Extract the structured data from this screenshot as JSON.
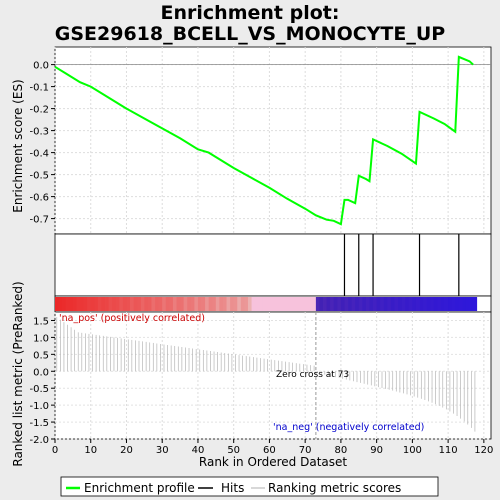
{
  "chart_data": {
    "type": "line",
    "title_line1": "Enrichment plot:",
    "title_line2": "GSE29618_BCELL_VS_MONOCYTE_UP",
    "es_panel": {
      "ylabel": "Enrichment score (ES)",
      "ylim": [
        -0.77,
        0.08
      ],
      "yticks": [
        0.0,
        -0.1,
        -0.2,
        -0.3,
        -0.4,
        -0.5,
        -0.6,
        -0.7
      ],
      "ytick_labels": [
        "0.0",
        "-0.1",
        "-0.2",
        "-0.3",
        "-0.4",
        "-0.5",
        "-0.6",
        "-0.7"
      ],
      "series": [
        {
          "color": "#00ff00",
          "x": [
            0,
            3,
            7,
            10,
            15,
            20,
            25,
            30,
            35,
            40,
            43,
            45,
            50,
            55,
            60,
            65,
            70,
            73,
            76,
            78,
            80,
            81,
            82,
            84,
            85,
            87,
            88,
            89,
            93,
            97,
            101,
            102,
            106,
            109,
            112,
            113,
            116,
            117
          ],
          "y": [
            -0.01,
            -0.04,
            -0.08,
            -0.1,
            -0.15,
            -0.2,
            -0.245,
            -0.29,
            -0.335,
            -0.385,
            -0.4,
            -0.42,
            -0.47,
            -0.515,
            -0.56,
            -0.61,
            -0.655,
            -0.685,
            -0.705,
            -0.71,
            -0.725,
            -0.615,
            -0.615,
            -0.63,
            -0.505,
            -0.52,
            -0.53,
            -0.34,
            -0.37,
            -0.405,
            -0.45,
            -0.215,
            -0.245,
            -0.27,
            -0.305,
            0.035,
            0.015,
            0.0
          ]
        }
      ]
    },
    "hits_panel": {
      "hit_ranks": [
        81,
        85,
        89,
        102,
        113
      ]
    },
    "color_bar": {
      "zero_cross_rank": 73,
      "pos_label": "'na_pos' (positively correlated)",
      "neg_label": "'na_neg' (negatively correlated)"
    },
    "metric_panel": {
      "ylabel": "Ranked list metric (PreRanked)",
      "ylim": [
        -2.0,
        1.75
      ],
      "yticks": [
        1.5,
        1.0,
        0.5,
        0.0,
        -0.5,
        -1.0,
        -1.5,
        -2.0
      ],
      "ytick_labels": [
        "1.5",
        "1.0",
        "0.5",
        "0.0",
        "-0.5",
        "-1.0",
        "-1.5",
        "-2.0"
      ],
      "zero_cross_label": "Zero cross at 73",
      "metric_start": 1.6,
      "metric_mid": 0.55,
      "metric_tail": -1.9
    },
    "x_axis": {
      "xlabel": "Rank in Ordered Dataset",
      "xlim": [
        0,
        122
      ],
      "xticks": [
        0,
        10,
        20,
        30,
        40,
        50,
        60,
        70,
        80,
        90,
        100,
        110,
        120
      ],
      "xtick_labels": [
        "0",
        "10",
        "20",
        "30",
        "40",
        "50",
        "60",
        "70",
        "80",
        "90",
        "100",
        "110",
        "120"
      ],
      "dataset_size": 118
    },
    "legend": {
      "placement": "bottom",
      "items": [
        {
          "label": "Enrichment profile",
          "color": "#00ff00"
        },
        {
          "label": "Hits",
          "color": "#000000"
        },
        {
          "label": "Ranking metric scores",
          "color": "#b0b0b0"
        }
      ]
    }
  }
}
